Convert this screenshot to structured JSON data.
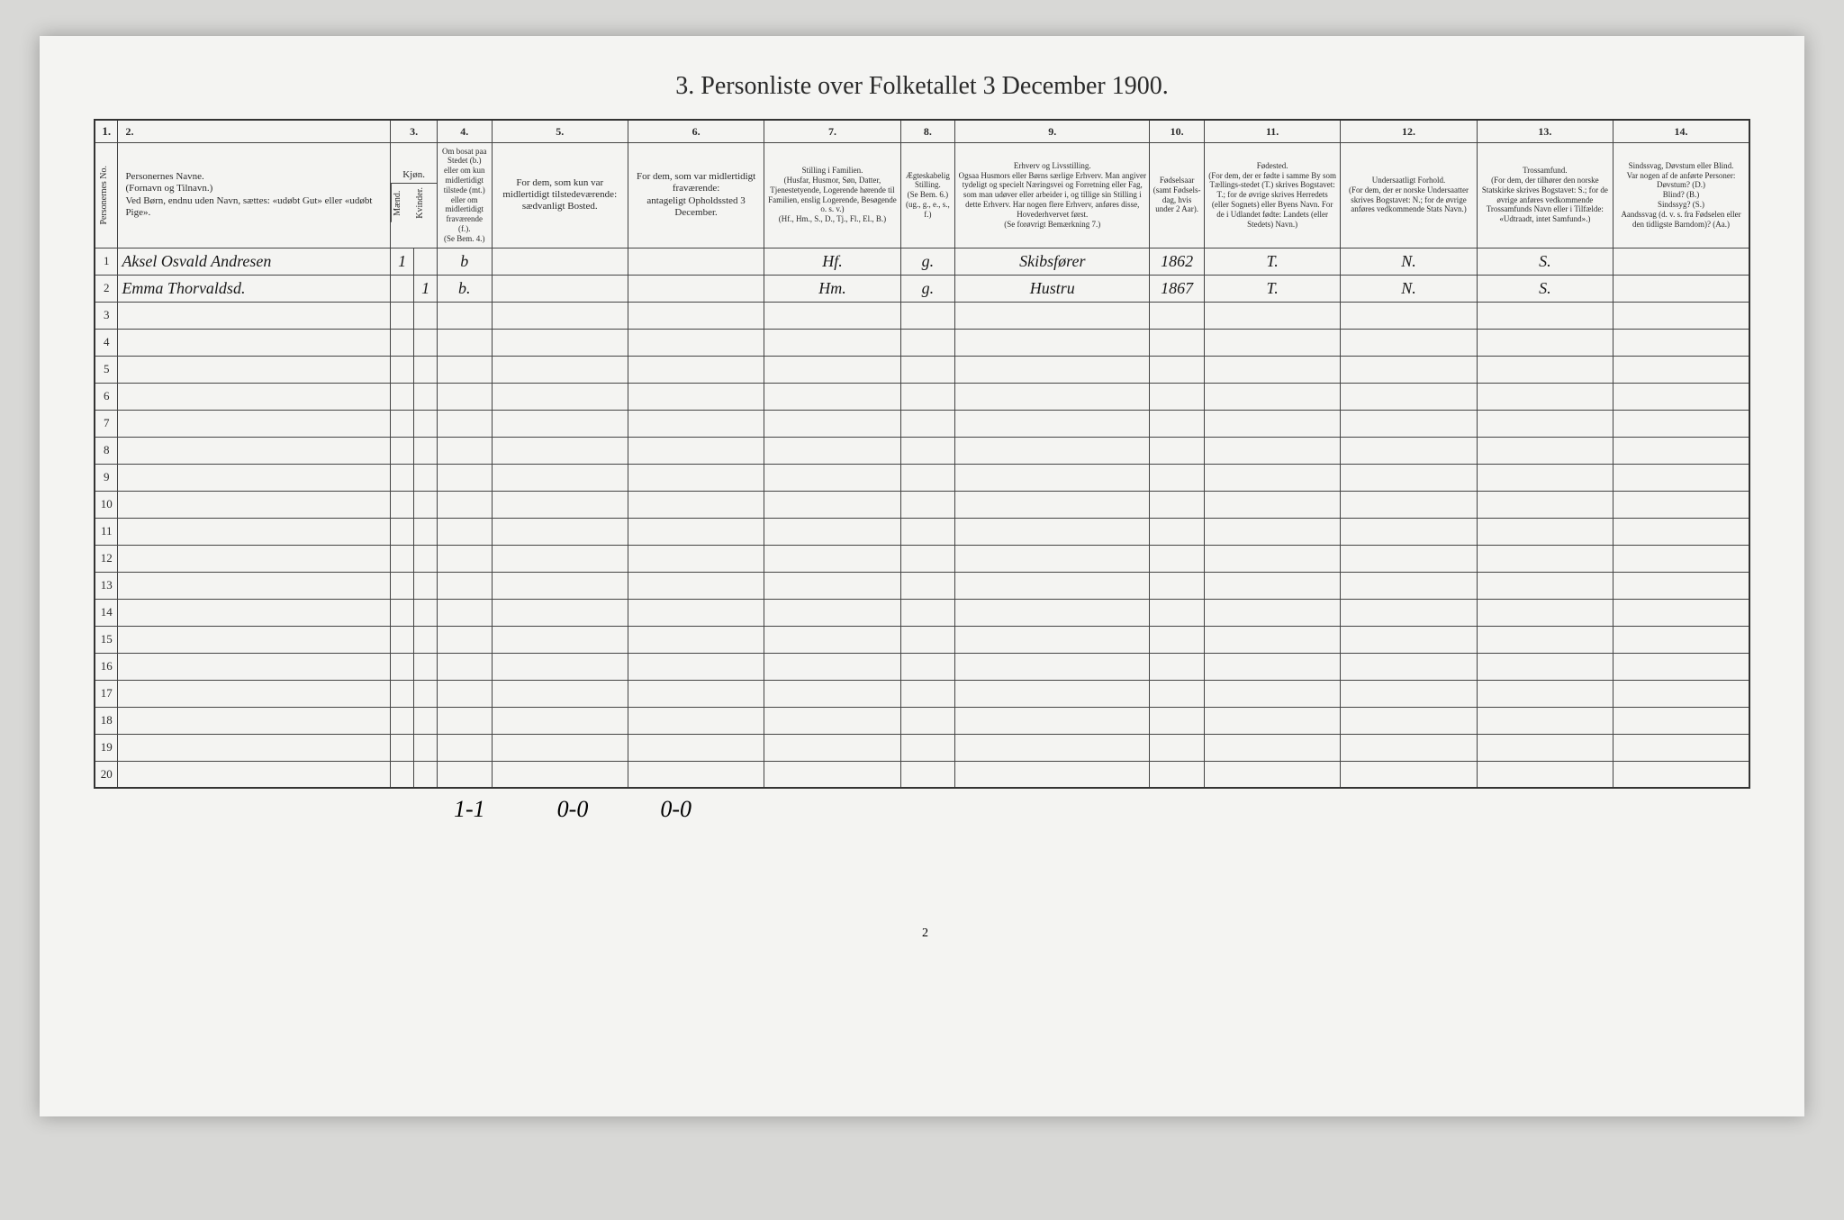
{
  "title": "3. Personliste over Folketallet 3 December 1900.",
  "columns": {
    "nums": [
      "1.",
      "2.",
      "3.",
      "4.",
      "5.",
      "6.",
      "7.",
      "8.",
      "9.",
      "10.",
      "11.",
      "12.",
      "13.",
      "14."
    ],
    "h1": "Personernes No.",
    "h2": "Personernes Navne.\n(Fornavn og Tilnavn.)\nVed Børn, endnu uden Navn, sættes: «udøbt Gut» eller «udøbt Pige».",
    "h3a": "Kjøn.",
    "h3b": "Mænd.",
    "h3c": "Kvinder.",
    "h4": "Om bosat paa Stedet (b.) eller om kun midlertidigt tilstede (mt.) eller om midlertidigt fraværende (f.).\n(Se Bem. 4.)",
    "h5": "For dem, som kun var midlertidigt tilstedeværende:\nsædvanligt Bosted.",
    "h6": "For dem, som var midlertidigt fraværende:\nantageligt Opholdssted 3 December.",
    "h7": "Stilling i Familien.\n(Husfar, Husmor, Søn, Datter, Tjenestetyende, Logerende hørende til Familien, enslig Logerende, Besøgende o. s. v.)\n(Hf., Hm., S., D., Tj., Fl., El., B.)",
    "h8": "Ægteskabelig Stilling.\n(Se Bem. 6.)\n(ug., g., e., s., f.)",
    "h9": "Erhverv og Livsstilling.\nOgsaa Husmors eller Børns særlige Erhverv. Man angiver tydeligt og specielt Næringsvei og Forretning eller Fag, som man udøver eller arbeider i, og tillige sin Stilling i dette Erhverv. Har nogen flere Erhverv, anføres disse, Hovederhvervet først.\n(Se forøvrigt Bemærkning 7.)",
    "h10": "Fødselsaar\n(samt Fødsels-dag, hvis under 2 Aar).",
    "h11": "Fødested.\n(For dem, der er fødte i samme By som Tællings-stedet (T.) skrives Bogstavet: T.; for de øvrige skrives Herredets (eller Sognets) eller Byens Navn. For de i Udlandet fødte: Landets (eller Stedets) Navn.)",
    "h12": "Undersaatligt Forhold.\n(For dem, der er norske Undersaatter skrives Bogstavet: N.; for de øvrige anføres vedkommende Stats Navn.)",
    "h13": "Trossamfund.\n(For dem, der tilhører den norske Statskirke skrives Bogstavet: S.; for de øvrige anføres vedkommende Trossamfunds Navn eller i Tilfælde: «Udtraadt, intet Samfund».)",
    "h14": "Sindssvag, Døvstum eller Blind.\nVar nogen af de anførte Personer:\nDøvstum? (D.)\nBlind? (B.)\nSindssyg? (S.)\nAandssvag (d. v. s. fra Fødselen eller den tidligste Barndom)? (Aa.)"
  },
  "rows": [
    {
      "n": "1",
      "name": "Aksel Osvald Andresen",
      "m": "1",
      "k": "",
      "res": "b",
      "c5": "",
      "c6": "",
      "c7": "Hf.",
      "c8": "g.",
      "c9": "Skibsfører",
      "c10": "1862",
      "c11": "T.",
      "c12": "N.",
      "c13": "S.",
      "c14": ""
    },
    {
      "n": "2",
      "name": "Emma Thorvaldsd.",
      "m": "",
      "k": "1",
      "res": "b.",
      "c5": "",
      "c6": "",
      "c7": "Hm.",
      "c8": "g.",
      "c9": "Hustru",
      "c10": "1867",
      "c11": "T.",
      "c12": "N.",
      "c13": "S.",
      "c14": ""
    },
    {
      "n": "3"
    },
    {
      "n": "4"
    },
    {
      "n": "5"
    },
    {
      "n": "6"
    },
    {
      "n": "7"
    },
    {
      "n": "8"
    },
    {
      "n": "9"
    },
    {
      "n": "10"
    },
    {
      "n": "11"
    },
    {
      "n": "12"
    },
    {
      "n": "13"
    },
    {
      "n": "14"
    },
    {
      "n": "15"
    },
    {
      "n": "16"
    },
    {
      "n": "17"
    },
    {
      "n": "18"
    },
    {
      "n": "19"
    },
    {
      "n": "20"
    }
  ],
  "tally": {
    "t1": "1-1",
    "t2": "0-0",
    "t3": "0-0"
  },
  "page_num": "2"
}
